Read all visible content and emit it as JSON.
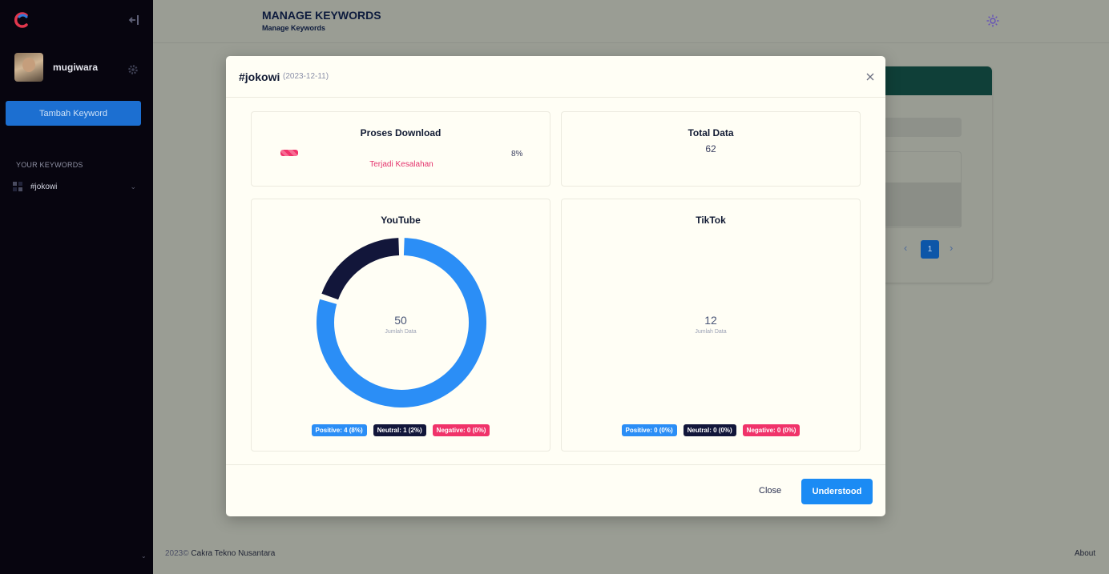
{
  "sidebar": {
    "username": "mugiwara",
    "add_keyword_label": "Tambah Keyword",
    "keywords_title": "YOUR KEYWORDS",
    "keywords": [
      {
        "label": "#jokowi"
      }
    ]
  },
  "header": {
    "title": "MANAGE KEYWORDS",
    "subtitle": "Manage Keywords"
  },
  "background": {
    "pagination": {
      "prev": "‹",
      "current": "1",
      "next": "›"
    }
  },
  "footer": {
    "year": "2023©",
    "company": "Cakra Tekno Nusantara",
    "about": "About"
  },
  "modal": {
    "title": "#jokowi",
    "date": "(2023-12-11)",
    "download": {
      "title": "Proses Download",
      "percent_label": "8%",
      "progress": 0.08,
      "error_text": "Terjadi Kesalahan"
    },
    "total": {
      "title": "Total Data",
      "value": "62"
    },
    "youtube": {
      "title": "YouTube",
      "center_value": "50",
      "center_label": "Jumlah Data",
      "segments": [
        {
          "name": "Positive",
          "value": 4,
          "color": "#2b8ef6"
        },
        {
          "name": "Neutral",
          "value": 1,
          "color": "#12163a"
        }
      ],
      "badges": {
        "positive": "Positive: 4 (8%)",
        "neutral": "Neutral: 1 (2%)",
        "negative": "Negative: 0 (0%)"
      }
    },
    "tiktok": {
      "title": "TikTok",
      "center_value": "12",
      "center_label": "Jumlah Data",
      "badges": {
        "positive": "Positive: 0 (0%)",
        "neutral": "Neutral: 0 (0%)",
        "negative": "Negative: 0 (0%)"
      }
    },
    "close_label": "Close",
    "understood_label": "Understood"
  },
  "colors": {
    "positive": "#2b8ef6",
    "neutral": "#12163a",
    "negative": "#f0336a",
    "primary": "#1b8bf4"
  }
}
